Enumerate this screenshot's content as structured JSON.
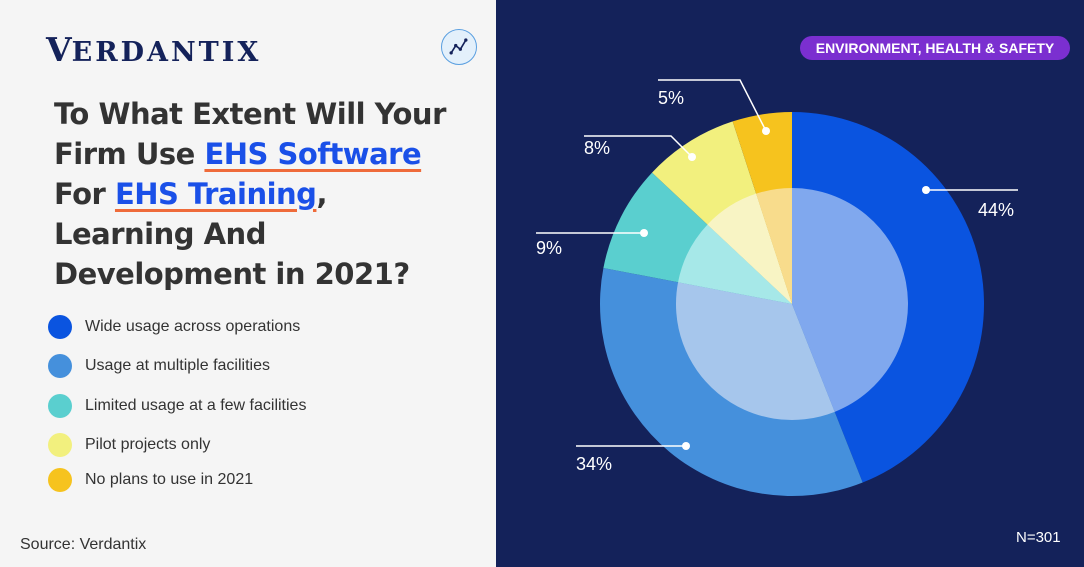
{
  "brand": {
    "logo_first": "V",
    "logo_rest": "ERDANTIX",
    "logo_icon": "trend-line-icon"
  },
  "title": {
    "pre": "To What Extent Will Your Firm Use ",
    "hl1": "EHS Software",
    "mid": " For ",
    "hl2": "EHS Training",
    "post": ", Learning And Development in 2021?"
  },
  "badge": "ENVIRONMENT, HEALTH & SAFETY",
  "source": "Source: Verdantix",
  "sample": "N=301",
  "colors": {
    "accent_blue": "#1a50e8",
    "underline": "#ef6b3a",
    "panel": "#14225a",
    "badge": "#7b2fd0"
  },
  "chart_data": {
    "type": "pie",
    "style": "donut with lighter inner ring",
    "categories": [
      "Wide usage across operations",
      "Usage at multiple facilities",
      "Limited usage at a few facilities",
      "Pilot projects only",
      "No plans to use in 2021"
    ],
    "values": [
      44,
      34,
      9,
      8,
      5
    ],
    "labels": [
      "44%",
      "34%",
      "9%",
      "8%",
      "5%"
    ],
    "colors": [
      "#0a54e0",
      "#4590dc",
      "#5acfcf",
      "#f2f07e",
      "#f6c31e"
    ],
    "inner_colors": [
      "#80a8ee",
      "#a6c6ec",
      "#a6e8e8",
      "#f8f4c4",
      "#f8dc8c"
    ],
    "legend_position": "left"
  }
}
